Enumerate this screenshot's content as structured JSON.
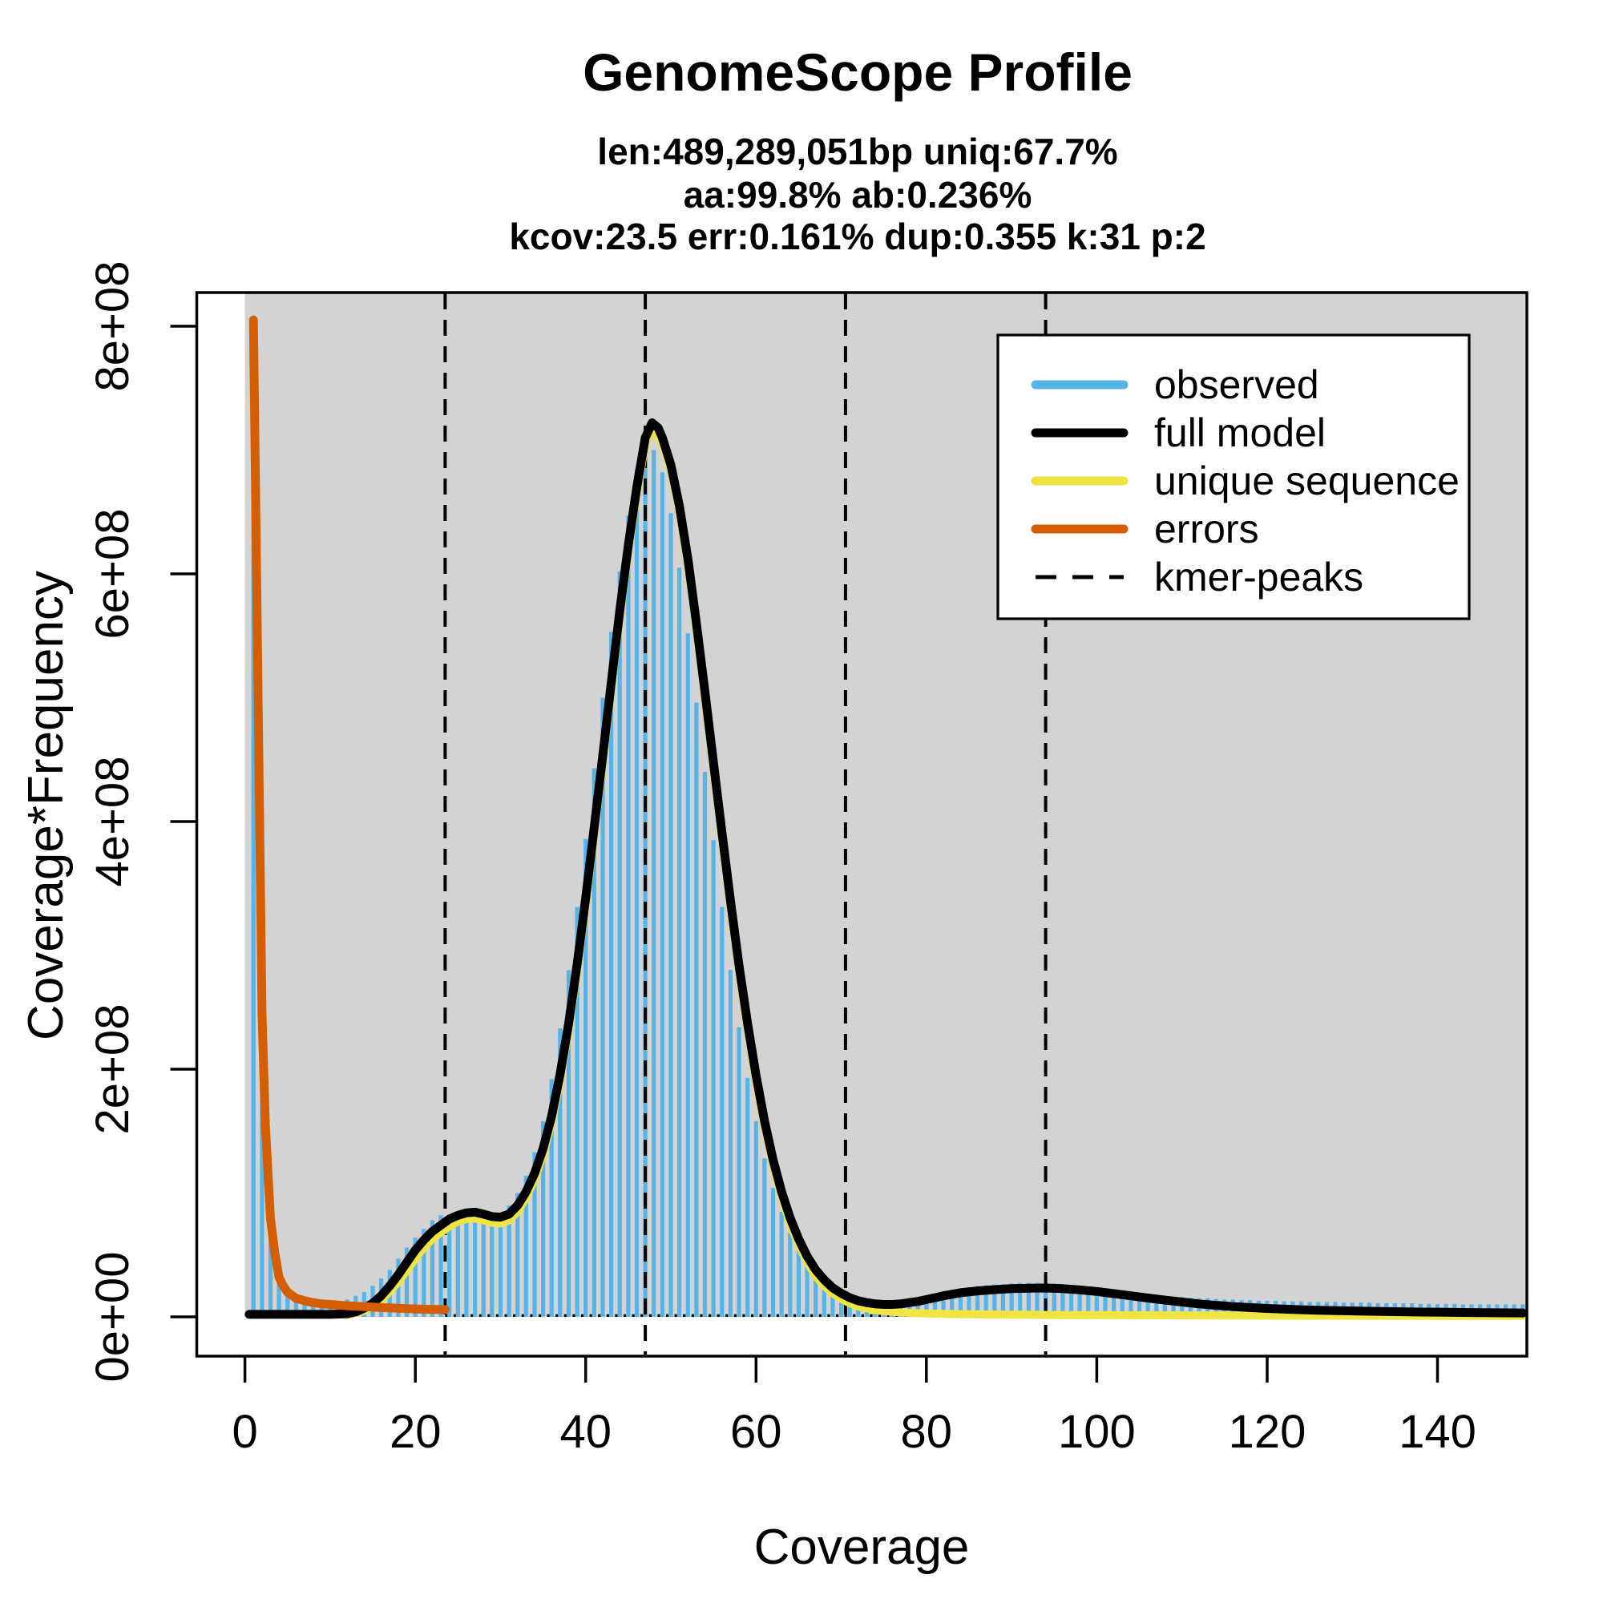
{
  "title": "GenomeScope Profile",
  "subtitle_lines": [
    "len:489,289,051bp uniq:67.7%",
    "aa:99.8% ab:0.236%",
    "kcov:23.5 err:0.161%  dup:0.355  k:31 p:2"
  ],
  "stats": {
    "len": "489,289,051bp",
    "uniq": "67.7%",
    "aa": "99.8%",
    "ab": "0.236%",
    "kcov": 23.5,
    "err": "0.161%",
    "dup": 0.355,
    "k": 31,
    "p": 2
  },
  "axes": {
    "x_label": "Coverage",
    "y_label": "Coverage*Frequency"
  },
  "chart_data": {
    "type": "bar",
    "description": "k-mer coverage histogram (observed) with fitted model curves; y values stored in millions (1e6) of Coverage*Frequency",
    "x_range": [
      0,
      150
    ],
    "y_range_millions": [
      0,
      827
    ],
    "x_ticks": [
      0,
      20,
      40,
      60,
      80,
      100,
      120,
      140
    ],
    "x_tick_labels": [
      "0",
      "20",
      "40",
      "60",
      "80",
      "100",
      "120",
      "140"
    ],
    "y_ticks_millions": [
      0,
      200,
      400,
      600,
      800
    ],
    "y_tick_labels": [
      "0e+00",
      "2e+08",
      "4e+08",
      "6e+08",
      "8e+08"
    ],
    "grid": false,
    "colors": {
      "panel_bg": "#d3d3d3",
      "observed": "#56b4e9",
      "full_model": "#000000",
      "unique_sequence": "#f0e442",
      "errors": "#d55e00",
      "kmer_peaks": "#000000",
      "axis": "#000000",
      "legend_bg": "#ffffff"
    },
    "kmer_peaks_x": [
      23.5,
      47,
      70.5,
      94
    ],
    "observed": {
      "x_start": 1,
      "x_step": 1,
      "values_millions": [
        805,
        245,
        79,
        31,
        19,
        14.5,
        12.5,
        11.5,
        11.5,
        12,
        12.5,
        14,
        17,
        20,
        25,
        31,
        38,
        47,
        56,
        64,
        71,
        78,
        82,
        82,
        83,
        84,
        85,
        84,
        82,
        83,
        90,
        100,
        114,
        133,
        158,
        192,
        233,
        280,
        331,
        386,
        443,
        500,
        553,
        602,
        647,
        685,
        710,
        700,
        682,
        649,
        605,
        552,
        496,
        440,
        385,
        331,
        280,
        234,
        193,
        158,
        128,
        104,
        85,
        68,
        55,
        44,
        35,
        28,
        23,
        19.5,
        17,
        15,
        13.5,
        13,
        13,
        13.5,
        14,
        15,
        16,
        17,
        18,
        19.5,
        21,
        22.5,
        24,
        25,
        25.5,
        26,
        26.5,
        27,
        27.5,
        27.5,
        27.5,
        27.5,
        27,
        26.5,
        25.5,
        25,
        24,
        23,
        22,
        21,
        20.5,
        19.5,
        19,
        18,
        17.5,
        17,
        16.5,
        16,
        15.5,
        15,
        15,
        14.5,
        14,
        14,
        13.5,
        13.5,
        13,
        13,
        13,
        12.5,
        12.5,
        12.5,
        12,
        12,
        12,
        12,
        11.5,
        11.5,
        11.5,
        11.5,
        11,
        11,
        11,
        11,
        11,
        10.5,
        10.5,
        10.5,
        10.5,
        10.5,
        10,
        10,
        10,
        10,
        10,
        10,
        10,
        10
      ]
    },
    "series": {
      "full_model": {
        "points": [
          [
            0.5,
            2
          ],
          [
            6,
            2
          ],
          [
            10,
            2
          ],
          [
            12,
            2.5
          ],
          [
            13,
            4
          ],
          [
            14,
            7
          ],
          [
            15,
            11
          ],
          [
            16,
            17
          ],
          [
            17,
            25
          ],
          [
            18,
            34
          ],
          [
            19,
            44
          ],
          [
            20,
            54
          ],
          [
            21,
            62
          ],
          [
            22,
            69
          ],
          [
            23,
            74
          ],
          [
            24,
            79
          ],
          [
            25,
            82
          ],
          [
            26,
            84
          ],
          [
            27,
            84.5
          ],
          [
            28,
            83
          ],
          [
            29,
            81
          ],
          [
            30,
            80.5
          ],
          [
            31,
            83
          ],
          [
            32,
            90
          ],
          [
            33,
            101
          ],
          [
            34,
            116
          ],
          [
            35,
            136
          ],
          [
            36,
            162
          ],
          [
            37,
            196
          ],
          [
            38,
            237
          ],
          [
            39,
            285
          ],
          [
            40,
            338
          ],
          [
            41,
            395
          ],
          [
            42,
            453
          ],
          [
            43,
            512
          ],
          [
            44,
            570
          ],
          [
            45,
            623
          ],
          [
            46,
            670
          ],
          [
            47,
            710
          ],
          [
            47.8,
            722
          ],
          [
            48.5,
            718
          ],
          [
            49,
            710
          ],
          [
            50,
            688
          ],
          [
            51,
            655
          ],
          [
            52,
            612
          ],
          [
            53,
            560
          ],
          [
            54,
            505
          ],
          [
            55,
            448
          ],
          [
            56,
            391
          ],
          [
            57,
            336
          ],
          [
            58,
            284
          ],
          [
            59,
            237
          ],
          [
            60,
            195
          ],
          [
            61,
            158
          ],
          [
            62,
            127
          ],
          [
            63,
            101
          ],
          [
            64,
            80
          ],
          [
            65,
            63
          ],
          [
            66,
            49
          ],
          [
            67,
            38
          ],
          [
            68,
            30
          ],
          [
            69,
            23.5
          ],
          [
            70,
            19
          ],
          [
            71,
            15.5
          ],
          [
            72,
            13
          ],
          [
            73,
            11.5
          ],
          [
            74,
            10.5
          ],
          [
            75,
            10
          ],
          [
            76,
            10
          ],
          [
            77,
            10.5
          ],
          [
            78,
            11.5
          ],
          [
            79,
            12.5
          ],
          [
            80,
            14
          ],
          [
            81,
            15.5
          ],
          [
            82,
            17
          ],
          [
            84,
            19.5
          ],
          [
            86,
            21
          ],
          [
            88,
            22
          ],
          [
            90,
            22.8
          ],
          [
            92,
            23.2
          ],
          [
            94,
            23.3
          ],
          [
            96,
            22.8
          ],
          [
            98,
            21.8
          ],
          [
            100,
            20.5
          ],
          [
            102,
            18.8
          ],
          [
            104,
            17
          ],
          [
            106,
            15.2
          ],
          [
            108,
            13.5
          ],
          [
            110,
            12
          ],
          [
            112,
            10.5
          ],
          [
            114,
            9.3
          ],
          [
            116,
            8.3
          ],
          [
            118,
            7.5
          ],
          [
            120,
            6.8
          ],
          [
            123,
            6
          ],
          [
            126,
            5.4
          ],
          [
            129,
            4.9
          ],
          [
            132,
            4.5
          ],
          [
            135,
            4.2
          ],
          [
            138,
            3.9
          ],
          [
            141,
            3.7
          ],
          [
            144,
            3.5
          ],
          [
            147,
            3.3
          ],
          [
            150,
            3.2
          ]
        ]
      },
      "unique_sequence": {
        "points": [
          [
            12,
            1.5
          ],
          [
            14,
            5
          ],
          [
            16,
            13
          ],
          [
            18,
            28
          ],
          [
            20,
            47
          ],
          [
            21,
            56
          ],
          [
            22,
            63
          ],
          [
            23,
            68
          ],
          [
            24,
            73
          ],
          [
            25,
            77
          ],
          [
            26,
            79
          ],
          [
            27,
            79.5
          ],
          [
            28,
            78
          ],
          [
            29,
            76
          ],
          [
            30,
            75.5
          ],
          [
            31,
            78
          ],
          [
            32,
            85
          ],
          [
            33,
            96
          ],
          [
            34,
            111
          ],
          [
            35,
            131
          ],
          [
            36,
            157
          ],
          [
            37,
            191
          ],
          [
            38,
            232
          ],
          [
            39,
            280
          ],
          [
            40,
            333
          ],
          [
            41,
            390
          ],
          [
            42,
            448
          ],
          [
            43,
            507
          ],
          [
            44,
            565
          ],
          [
            45,
            618
          ],
          [
            46,
            665
          ],
          [
            47,
            705
          ],
          [
            47.8,
            717
          ],
          [
            49,
            705
          ],
          [
            50,
            683
          ],
          [
            51,
            650
          ],
          [
            52,
            607
          ],
          [
            53,
            555
          ],
          [
            54,
            500
          ],
          [
            55,
            443
          ],
          [
            56,
            386
          ],
          [
            57,
            331
          ],
          [
            58,
            279
          ],
          [
            59,
            232
          ],
          [
            60,
            190
          ],
          [
            61,
            153
          ],
          [
            62,
            122
          ],
          [
            63,
            96
          ],
          [
            64,
            75
          ],
          [
            65,
            58
          ],
          [
            66,
            44
          ],
          [
            67,
            33
          ],
          [
            68,
            25
          ],
          [
            69,
            19
          ],
          [
            70,
            14.5
          ],
          [
            71,
            11
          ],
          [
            72,
            8.5
          ],
          [
            73,
            6.8
          ],
          [
            74,
            5.5
          ],
          [
            75,
            4.6
          ],
          [
            77,
            3.5
          ],
          [
            80,
            2.7
          ],
          [
            84,
            2.2
          ],
          [
            88,
            1.9
          ],
          [
            92,
            1.7
          ],
          [
            96,
            1.5
          ],
          [
            100,
            1.4
          ],
          [
            110,
            1.2
          ],
          [
            120,
            1
          ],
          [
            130,
            0.9
          ],
          [
            140,
            0.8
          ],
          [
            150,
            0.8
          ]
        ]
      },
      "errors": {
        "points": [
          [
            1,
            805
          ],
          [
            1.3,
            640
          ],
          [
            1.6,
            470
          ],
          [
            2,
            245
          ],
          [
            2.4,
            155
          ],
          [
            3,
            79
          ],
          [
            3.5,
            52
          ],
          [
            4,
            32
          ],
          [
            4.5,
            25
          ],
          [
            5,
            20
          ],
          [
            6,
            15
          ],
          [
            7,
            13
          ],
          [
            8,
            11.5
          ],
          [
            9,
            10.5
          ],
          [
            10,
            10
          ],
          [
            12,
            9
          ],
          [
            14,
            8.2
          ],
          [
            16,
            7.5
          ],
          [
            18,
            6.9
          ],
          [
            20,
            6.4
          ],
          [
            21.5,
            6.1
          ],
          [
            23.5,
            5.9
          ]
        ]
      }
    },
    "legend": {
      "position": "top-right",
      "items": [
        {
          "label": "observed",
          "color": "#56b4e9",
          "dashed": false
        },
        {
          "label": "full model",
          "color": "#000000",
          "dashed": false
        },
        {
          "label": "unique sequence",
          "color": "#f0e442",
          "dashed": false
        },
        {
          "label": "errors",
          "color": "#d55e00",
          "dashed": false
        },
        {
          "label": "kmer-peaks",
          "color": "#000000",
          "dashed": true
        }
      ]
    }
  }
}
